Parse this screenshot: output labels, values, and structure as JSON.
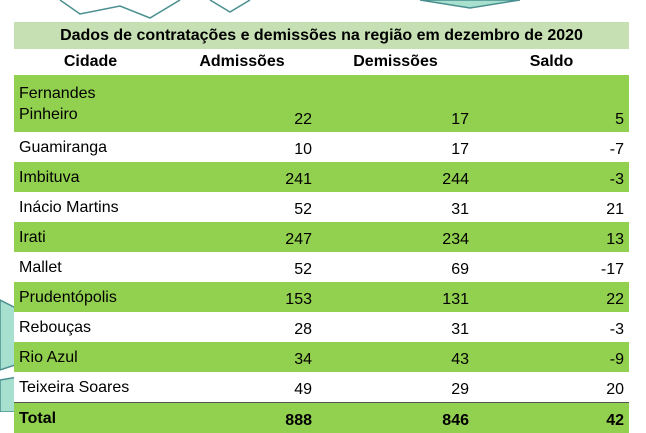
{
  "table": {
    "title": "Dados de contratações e demissões na região em dezembro de 2020",
    "headers": [
      "Cidade",
      "Admissões",
      "Demissões",
      "Saldo"
    ],
    "rows": [
      {
        "city_line1": "Fernandes",
        "city_line2": "Pinheiro",
        "admissoes": "22",
        "demissoes": "17",
        "saldo": "5"
      },
      {
        "city": "Guamiranga",
        "admissoes": "10",
        "demissoes": "17",
        "saldo": "-7"
      },
      {
        "city": "Imbituva",
        "admissoes": "241",
        "demissoes": "244",
        "saldo": "-3"
      },
      {
        "city": "Inácio Martins",
        "admissoes": "52",
        "demissoes": "31",
        "saldo": "21"
      },
      {
        "city": "Irati",
        "admissoes": "247",
        "demissoes": "234",
        "saldo": "13"
      },
      {
        "city": "Mallet",
        "admissoes": "52",
        "demissoes": "69",
        "saldo": "-17"
      },
      {
        "city": "Prudentópolis",
        "admissoes": "153",
        "demissoes": "131",
        "saldo": "22"
      },
      {
        "city": "Rebouças",
        "admissoes": "28",
        "demissoes": "31",
        "saldo": "-3"
      },
      {
        "city": "Rio Azul",
        "admissoes": "34",
        "demissoes": "43",
        "saldo": "-9"
      },
      {
        "city": "Teixeira Soares",
        "admissoes": "49",
        "demissoes": "29",
        "saldo": "20"
      }
    ],
    "total": {
      "label": "Total",
      "admissoes": "888",
      "demissoes": "846",
      "saldo": "42"
    }
  },
  "colors": {
    "title_bg": "#c6e0b4",
    "row_green": "#92d050",
    "row_white": "#ffffff",
    "map_green": "#a8e0cf",
    "map_outline": "#4a8f8f"
  }
}
